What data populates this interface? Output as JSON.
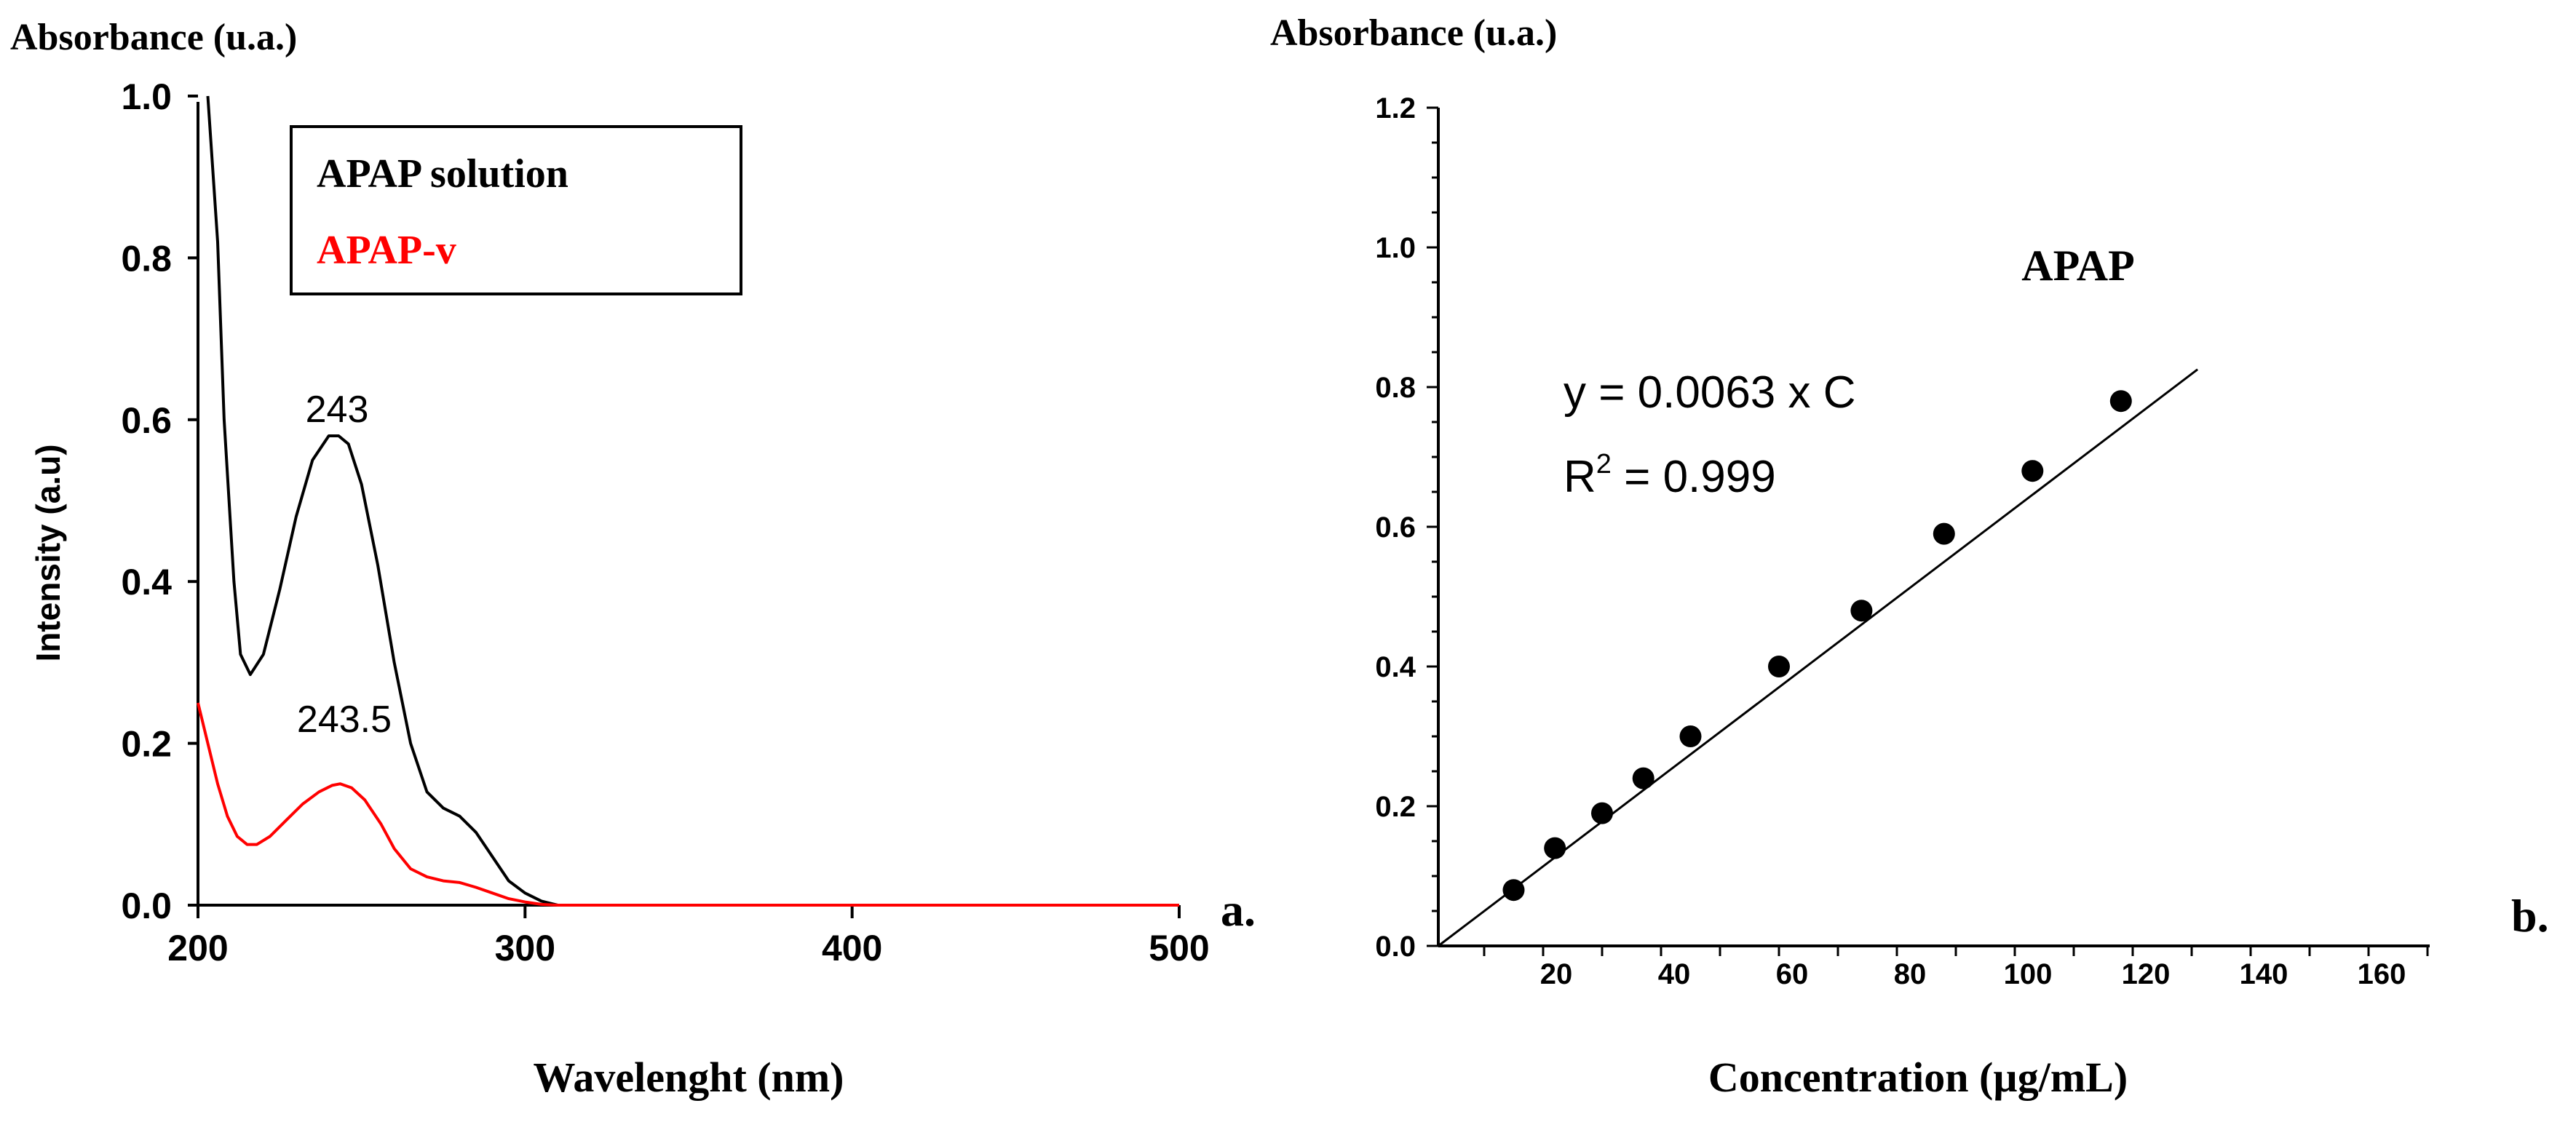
{
  "chart_data": [
    {
      "id": "a",
      "type": "line",
      "panel_label": "a.",
      "top_label": "Absorbance (u.a.)",
      "xlabel": "Wavelenght (nm)",
      "ylabel": "Intensity (a.u)",
      "xlim": [
        200,
        500
      ],
      "ylim": [
        0.0,
        1.0
      ],
      "x_ticks": [
        200,
        300,
        400,
        500
      ],
      "y_ticks": [
        0.0,
        0.2,
        0.4,
        0.6,
        0.8,
        1.0
      ],
      "x_tick_labels": [
        "200",
        "300",
        "400",
        "500"
      ],
      "y_tick_labels": [
        "0.0",
        "0.2",
        "0.4",
        "0.6",
        "0.8",
        "1.0"
      ],
      "legend_position": "top-left",
      "series": [
        {
          "name": "APAP solution",
          "color": "#000000",
          "x": [
            203,
            206,
            208,
            211,
            213,
            216,
            220,
            225,
            230,
            235,
            240,
            243,
            246,
            250,
            255,
            260,
            265,
            270,
            275,
            280,
            285,
            290,
            295,
            300,
            305,
            310,
            320,
            350,
            400,
            450,
            500
          ],
          "y": [
            1.0,
            0.82,
            0.6,
            0.4,
            0.31,
            0.285,
            0.31,
            0.39,
            0.48,
            0.55,
            0.58,
            0.58,
            0.57,
            0.52,
            0.42,
            0.3,
            0.2,
            0.14,
            0.12,
            0.11,
            0.09,
            0.06,
            0.03,
            0.015,
            0.005,
            0.0,
            0.0,
            0.0,
            0.0,
            0.0,
            0.0
          ]
        },
        {
          "name": "APAP-v",
          "color": "#ff0000",
          "x": [
            200,
            203,
            206,
            209,
            212,
            215,
            218,
            222,
            227,
            232,
            237,
            241,
            243.5,
            247,
            251,
            256,
            260,
            265,
            270,
            275,
            280,
            285,
            290,
            295,
            300,
            305,
            310,
            320,
            350,
            400,
            450,
            500
          ],
          "y": [
            0.25,
            0.2,
            0.15,
            0.11,
            0.085,
            0.075,
            0.075,
            0.085,
            0.105,
            0.125,
            0.14,
            0.148,
            0.15,
            0.145,
            0.13,
            0.1,
            0.07,
            0.045,
            0.035,
            0.03,
            0.028,
            0.022,
            0.015,
            0.008,
            0.004,
            0.001,
            0.0,
            0.0,
            0.0,
            0.0,
            0.0,
            0.0
          ]
        }
      ],
      "annotations": [
        {
          "text": "243",
          "x": 243,
          "y": 0.6
        },
        {
          "text": "243.5",
          "x": 243.5,
          "y": 0.17
        }
      ]
    },
    {
      "id": "b",
      "type": "scatter",
      "panel_label": "b.",
      "top_label": "Absorbance (u.a.)",
      "xlabel": "Concentration (µg/mL)",
      "ylabel": "",
      "title": "APAP",
      "xlim": [
        0,
        170
      ],
      "ylim": [
        0.0,
        1.2
      ],
      "x_ticks": [
        20,
        40,
        60,
        80,
        100,
        120,
        140,
        160
      ],
      "y_ticks": [
        0.0,
        0.2,
        0.4,
        0.6,
        0.8,
        1.0,
        1.2
      ],
      "x_tick_labels": [
        "20",
        "40",
        "60",
        "80",
        "100",
        "120",
        "140",
        "160"
      ],
      "y_tick_labels": [
        "0.0",
        "0.2",
        "0.4",
        "0.6",
        "0.8",
        "1.0",
        "1.2"
      ],
      "points": {
        "x": [
          15,
          22,
          30,
          37,
          45,
          60,
          74,
          88,
          103,
          118
        ],
        "y": [
          0.08,
          0.14,
          0.19,
          0.24,
          0.3,
          0.4,
          0.48,
          0.59,
          0.68,
          0.78
        ]
      },
      "fit_line": {
        "slope": 0.0063,
        "x_range": [
          0,
          131
        ]
      },
      "equation_text": "y = 0.0063 x C",
      "r2_prefix": "R",
      "r2_sup": "2",
      "r2_suffix": " = 0.999"
    }
  ]
}
